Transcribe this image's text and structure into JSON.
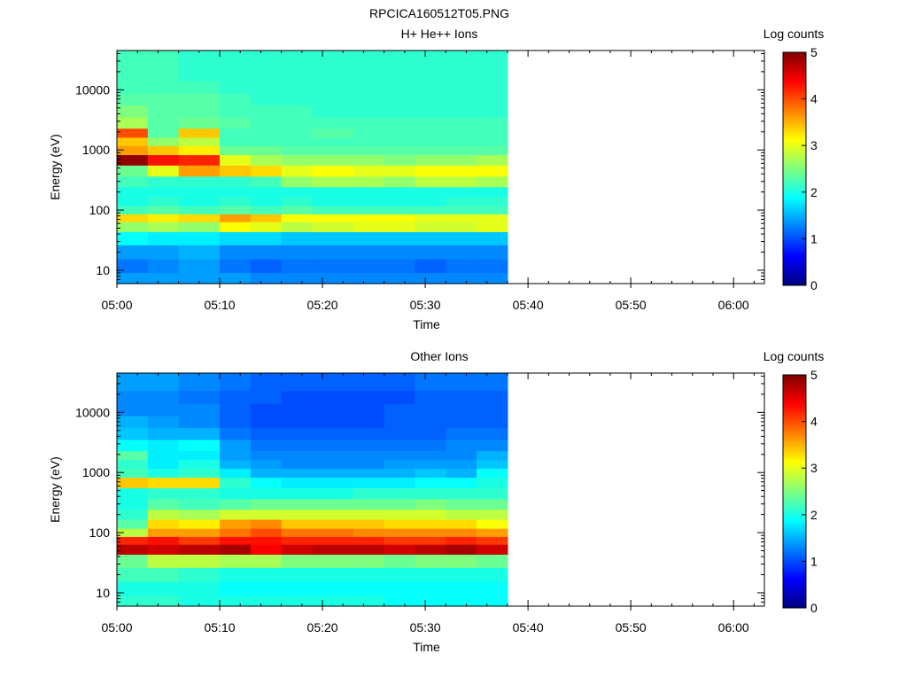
{
  "page_title": "RPCICA160512T05.PNG",
  "colorbar_colors": [
    "#00007f",
    "#0000ff",
    "#007fff",
    "#00ffff",
    "#7fff7f",
    "#ffff00",
    "#ff7f00",
    "#ff0000",
    "#7f0000"
  ],
  "chart_data": [
    {
      "type": "heatmap",
      "title": "H+ He++ Ions",
      "xlabel": "Time",
      "ylabel": "Energy (eV)",
      "colorbar_label": "Log counts",
      "colorbar_range": [
        0,
        5
      ],
      "colorbar_ticks": [
        "0",
        "1",
        "2",
        "3",
        "4",
        "5"
      ],
      "yscale": "log",
      "ylim": [
        6,
        45000
      ],
      "x_ticks": [
        "05:00",
        "05:10",
        "05:20",
        "05:30",
        "05:40",
        "05:50",
        "06:00"
      ],
      "y_ticks": [
        "10",
        "100",
        "1000",
        "10000"
      ],
      "xlim": [
        "05:00",
        "06:03"
      ],
      "data_end": "05:38",
      "time_bins": [
        "05:00",
        "05:03",
        "05:06",
        "05:10",
        "05:13",
        "05:16",
        "05:19",
        "05:23",
        "05:26",
        "05:29",
        "05:32",
        "05:35"
      ],
      "energy_bins_eV": [
        7,
        12,
        20,
        35,
        55,
        75,
        100,
        140,
        200,
        300,
        450,
        700,
        1000,
        1400,
        1900,
        2800,
        4500,
        7000,
        11000,
        18000,
        30000
      ],
      "log_counts": [
        [
          1.4,
          1.2,
          1.4,
          1.9,
          2.6,
          3.3,
          2.2,
          2.0,
          2.0,
          2.2,
          2.4,
          4.9,
          3.6,
          3.4,
          4.0,
          2.7,
          2.5,
          2.3,
          2.2,
          2.2,
          2.2
        ],
        [
          1.4,
          1.3,
          1.4,
          1.8,
          2.7,
          3.2,
          2.3,
          2.1,
          2.0,
          2.1,
          3.0,
          4.3,
          3.4,
          2.6,
          2.3,
          2.3,
          2.3,
          2.3,
          2.2,
          2.2,
          2.2
        ],
        [
          1.4,
          1.4,
          1.5,
          1.8,
          2.6,
          3.3,
          2.2,
          2.0,
          2.0,
          2.1,
          3.6,
          4.2,
          3.2,
          2.8,
          3.4,
          2.4,
          2.3,
          2.3,
          2.2,
          2.1,
          2.1
        ],
        [
          1.4,
          1.2,
          1.3,
          1.7,
          3.1,
          3.6,
          2.3,
          2.1,
          2.0,
          2.1,
          3.4,
          3.0,
          2.4,
          2.2,
          2.2,
          2.3,
          2.2,
          2.2,
          2.1,
          2.1,
          2.1
        ],
        [
          1.3,
          1.1,
          1.3,
          1.7,
          3.0,
          3.4,
          2.2,
          2.0,
          2.0,
          2.2,
          3.3,
          2.7,
          2.4,
          2.2,
          2.2,
          2.2,
          2.2,
          2.1,
          2.1,
          2.1,
          2.1
        ],
        [
          1.3,
          1.2,
          1.3,
          1.6,
          2.8,
          3.1,
          2.3,
          2.1,
          2.0,
          2.6,
          3.0,
          2.6,
          2.3,
          2.2,
          2.2,
          2.2,
          2.2,
          2.1,
          2.1,
          2.1,
          2.1
        ],
        [
          1.3,
          1.2,
          1.3,
          1.6,
          2.9,
          3.1,
          2.2,
          2.0,
          2.0,
          2.7,
          3.1,
          2.6,
          2.3,
          2.2,
          2.3,
          2.2,
          2.1,
          2.1,
          2.1,
          2.1,
          2.1
        ],
        [
          1.3,
          1.2,
          1.3,
          1.6,
          3.0,
          3.1,
          2.2,
          2.0,
          2.0,
          2.7,
          3.0,
          2.6,
          2.3,
          2.2,
          2.2,
          2.2,
          2.1,
          2.1,
          2.1,
          2.1,
          2.1
        ],
        [
          1.3,
          1.2,
          1.3,
          1.6,
          3.0,
          3.1,
          2.2,
          2.0,
          2.0,
          2.6,
          3.0,
          2.5,
          2.3,
          2.2,
          2.2,
          2.2,
          2.1,
          2.1,
          2.1,
          2.1,
          2.1
        ],
        [
          1.3,
          1.1,
          1.3,
          1.6,
          2.9,
          3.0,
          2.2,
          2.0,
          2.0,
          2.8,
          3.1,
          2.6,
          2.3,
          2.2,
          2.2,
          2.2,
          2.1,
          2.1,
          2.1,
          2.1,
          2.1
        ],
        [
          1.3,
          1.2,
          1.3,
          1.6,
          2.9,
          3.0,
          2.2,
          2.1,
          2.0,
          2.8,
          3.1,
          2.6,
          2.3,
          2.2,
          2.2,
          2.2,
          2.1,
          2.1,
          2.1,
          2.1,
          2.1
        ],
        [
          1.3,
          1.2,
          1.3,
          1.6,
          3.0,
          3.0,
          2.2,
          2.1,
          2.0,
          2.7,
          3.1,
          2.7,
          2.3,
          2.2,
          2.2,
          2.2,
          2.1,
          2.1,
          2.1,
          2.1,
          2.1
        ]
      ]
    },
    {
      "type": "heatmap",
      "title": "Other Ions",
      "xlabel": "Time",
      "ylabel": "Energy (eV)",
      "colorbar_label": "Log counts",
      "colorbar_range": [
        0,
        5
      ],
      "colorbar_ticks": [
        "0",
        "1",
        "2",
        "3",
        "4",
        "5"
      ],
      "yscale": "log",
      "ylim": [
        6,
        45000
      ],
      "x_ticks": [
        "05:00",
        "05:10",
        "05:20",
        "05:30",
        "05:40",
        "05:50",
        "06:00"
      ],
      "y_ticks": [
        "10",
        "100",
        "1000",
        "10000"
      ],
      "xlim": [
        "05:00",
        "06:03"
      ],
      "data_end": "05:38",
      "time_bins": [
        "05:00",
        "05:03",
        "05:06",
        "05:10",
        "05:13",
        "05:16",
        "05:19",
        "05:23",
        "05:26",
        "05:29",
        "05:32",
        "05:35"
      ],
      "energy_bins_eV": [
        7,
        12,
        20,
        35,
        55,
        75,
        100,
        140,
        200,
        300,
        450,
        700,
        1000,
        1400,
        1900,
        2800,
        4500,
        7000,
        11000,
        18000,
        30000
      ],
      "log_counts": [
        [
          2.1,
          2.0,
          2.2,
          2.4,
          4.7,
          4.2,
          2.8,
          2.3,
          2.1,
          2.0,
          2.0,
          3.4,
          2.2,
          2.1,
          2.3,
          1.9,
          1.6,
          1.5,
          1.3,
          1.3,
          1.4
        ],
        [
          2.1,
          2.0,
          2.2,
          2.8,
          4.6,
          4.3,
          3.6,
          3.3,
          2.8,
          2.3,
          2.1,
          3.3,
          2.0,
          1.8,
          1.8,
          1.8,
          1.5,
          1.4,
          1.3,
          1.3,
          1.4
        ],
        [
          2.0,
          2.0,
          2.1,
          2.8,
          4.7,
          4.1,
          3.6,
          3.2,
          2.7,
          2.2,
          2.1,
          3.3,
          2.1,
          2.0,
          1.8,
          1.9,
          1.5,
          1.3,
          1.3,
          1.2,
          1.3
        ],
        [
          2.0,
          1.9,
          2.0,
          2.7,
          4.8,
          4.3,
          3.8,
          3.6,
          2.9,
          2.3,
          2.0,
          2.1,
          1.8,
          1.5,
          1.4,
          1.4,
          1.2,
          1.1,
          1.1,
          1.1,
          1.2
        ],
        [
          2.0,
          1.9,
          2.0,
          2.7,
          4.4,
          4.3,
          4.0,
          3.7,
          2.9,
          2.4,
          2.0,
          1.9,
          1.5,
          1.4,
          1.3,
          1.2,
          1.1,
          1.0,
          1.0,
          1.1,
          1.1
        ],
        [
          2.0,
          1.9,
          2.0,
          2.5,
          4.6,
          4.2,
          3.8,
          3.4,
          2.9,
          2.4,
          2.0,
          1.8,
          1.5,
          1.3,
          1.3,
          1.2,
          1.1,
          1.0,
          1.0,
          1.0,
          1.1
        ],
        [
          2.0,
          1.9,
          2.0,
          2.5,
          4.7,
          4.2,
          3.8,
          3.4,
          2.9,
          2.4,
          2.0,
          1.8,
          1.5,
          1.3,
          1.3,
          1.2,
          1.1,
          1.0,
          1.0,
          1.0,
          1.1
        ],
        [
          2.0,
          1.9,
          2.0,
          2.5,
          4.7,
          4.2,
          3.7,
          3.4,
          2.9,
          2.4,
          2.1,
          1.8,
          1.5,
          1.3,
          1.3,
          1.2,
          1.1,
          1.0,
          1.0,
          1.0,
          1.1
        ],
        [
          1.9,
          1.9,
          2.0,
          2.4,
          4.6,
          4.1,
          3.7,
          3.3,
          2.9,
          2.4,
          2.1,
          1.8,
          1.5,
          1.4,
          1.3,
          1.2,
          1.1,
          1.1,
          1.1,
          1.0,
          1.1
        ],
        [
          1.9,
          1.9,
          2.0,
          2.5,
          4.7,
          4.1,
          3.7,
          3.3,
          2.9,
          2.5,
          2.1,
          1.9,
          1.6,
          1.4,
          1.3,
          1.2,
          1.1,
          1.1,
          1.1,
          1.1,
          1.2
        ],
        [
          1.9,
          1.9,
          2.0,
          2.5,
          4.8,
          4.2,
          3.7,
          3.3,
          2.8,
          2.4,
          2.1,
          1.9,
          1.5,
          1.4,
          1.3,
          1.3,
          1.2,
          1.1,
          1.1,
          1.1,
          1.2
        ],
        [
          1.9,
          1.9,
          2.0,
          2.4,
          4.6,
          4.1,
          3.6,
          3.1,
          2.8,
          2.4,
          2.1,
          2.0,
          1.9,
          1.6,
          1.5,
          1.3,
          1.2,
          1.1,
          1.1,
          1.1,
          1.2
        ]
      ]
    }
  ]
}
